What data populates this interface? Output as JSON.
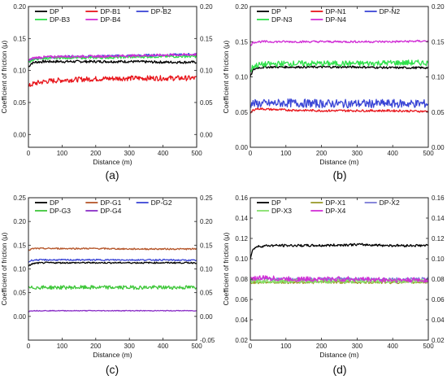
{
  "chart_data": [
    {
      "type": "line",
      "panel_label": "(a)",
      "xlabel": "Distance (m)",
      "ylabel": "Coefficient of friction (μ)",
      "xlim": [
        0,
        500
      ],
      "ylim": [
        -0.02,
        0.2
      ],
      "xticks": [
        0,
        100,
        200,
        300,
        400,
        500
      ],
      "yticks_left": [
        0.0,
        0.05,
        0.1,
        0.15,
        0.2
      ],
      "yticks_right": [
        0.0,
        0.05,
        0.1,
        0.15,
        0.2
      ],
      "legend": {
        "placement": "top-left",
        "columns": 3
      },
      "series": [
        {
          "name": "DP",
          "color": "#000000",
          "x": [
            0,
            8,
            20,
            50,
            100,
            200,
            300,
            400,
            500
          ],
          "y": [
            0.105,
            0.111,
            0.113,
            0.114,
            0.114,
            0.114,
            0.114,
            0.113,
            0.113
          ],
          "noise": 0.002
        },
        {
          "name": "DP-B1",
          "color": "#e8151b",
          "x": [
            0,
            8,
            20,
            50,
            100,
            200,
            300,
            400,
            500
          ],
          "y": [
            0.074,
            0.078,
            0.08,
            0.083,
            0.085,
            0.087,
            0.088,
            0.088,
            0.088
          ],
          "noise": 0.004
        },
        {
          "name": "DP-B2",
          "color": "#3b46d6",
          "x": [
            0,
            8,
            20,
            50,
            100,
            200,
            300,
            400,
            500
          ],
          "y": [
            0.113,
            0.117,
            0.119,
            0.12,
            0.121,
            0.122,
            0.123,
            0.124,
            0.125
          ],
          "noise": 0.002
        },
        {
          "name": "DP-B3",
          "color": "#2ee04a",
          "x": [
            0,
            8,
            20,
            50,
            100,
            200,
            300,
            400,
            500
          ],
          "y": [
            0.112,
            0.116,
            0.118,
            0.119,
            0.12,
            0.12,
            0.121,
            0.122,
            0.122
          ],
          "noise": 0.002
        },
        {
          "name": "DP-B4",
          "color": "#d12fd6",
          "x": [
            0,
            8,
            20,
            50,
            100,
            200,
            300,
            400,
            500
          ],
          "y": [
            0.115,
            0.118,
            0.12,
            0.121,
            0.122,
            0.122,
            0.123,
            0.124,
            0.125
          ],
          "noise": 0.002
        }
      ]
    },
    {
      "type": "line",
      "panel_label": "(b)",
      "xlabel": "Distance (m)",
      "ylabel": "Coefficient of friction (μ)",
      "xlim": [
        0,
        500
      ],
      "ylim": [
        0,
        0.2
      ],
      "xticks": [
        0,
        100,
        200,
        300,
        400,
        500
      ],
      "yticks_left": [
        0.0,
        0.05,
        0.1,
        0.15,
        0.2
      ],
      "yticks_right": [
        0.0,
        0.05,
        0.1,
        0.15,
        0.2
      ],
      "legend": {
        "placement": "top-left",
        "columns": 3
      },
      "series": [
        {
          "name": "DP",
          "color": "#000000",
          "x": [
            0,
            8,
            20,
            50,
            100,
            200,
            300,
            400,
            500
          ],
          "y": [
            0.1,
            0.11,
            0.113,
            0.114,
            0.114,
            0.114,
            0.114,
            0.113,
            0.113
          ],
          "noise": 0.0015
        },
        {
          "name": "DP-N1",
          "color": "#e8151b",
          "x": [
            0,
            8,
            20,
            50,
            100,
            200,
            300,
            400,
            500
          ],
          "y": [
            0.048,
            0.053,
            0.055,
            0.054,
            0.053,
            0.052,
            0.052,
            0.052,
            0.051
          ],
          "noise": 0.0015
        },
        {
          "name": "DP-N2",
          "color": "#3b46d6",
          "x": [
            0,
            8,
            20,
            50,
            100,
            200,
            300,
            400,
            500
          ],
          "y": [
            0.062,
            0.062,
            0.062,
            0.062,
            0.063,
            0.062,
            0.062,
            0.062,
            0.062
          ],
          "noise": 0.006
        },
        {
          "name": "DP-N3",
          "color": "#2ee04a",
          "x": [
            0,
            8,
            20,
            50,
            100,
            200,
            300,
            400,
            500
          ],
          "y": [
            0.108,
            0.115,
            0.117,
            0.118,
            0.119,
            0.119,
            0.119,
            0.12,
            0.12
          ],
          "noise": 0.004
        },
        {
          "name": "DP-N4",
          "color": "#d12fd6",
          "x": [
            0,
            8,
            20,
            50,
            100,
            200,
            300,
            400,
            500
          ],
          "y": [
            0.145,
            0.149,
            0.15,
            0.15,
            0.15,
            0.15,
            0.15,
            0.15,
            0.151
          ],
          "noise": 0.0015
        }
      ]
    },
    {
      "type": "line",
      "panel_label": "(c)",
      "xlabel": "Distance (m)",
      "ylabel": "Coefficient of friction (μ)",
      "xlim": [
        0,
        500
      ],
      "ylim": [
        -0.05,
        0.25
      ],
      "xticks": [
        0,
        100,
        200,
        300,
        400,
        500
      ],
      "yticks_left": [
        0.0,
        0.05,
        0.1,
        0.15,
        0.2,
        0.25
      ],
      "yticks_right": [
        -0.05,
        0.0,
        0.05,
        0.1,
        0.15,
        0.2,
        0.25
      ],
      "legend": {
        "placement": "top-left",
        "columns": 3
      },
      "series": [
        {
          "name": "DP",
          "color": "#000000",
          "x": [
            0,
            8,
            20,
            50,
            100,
            200,
            300,
            400,
            500
          ],
          "y": [
            0.105,
            0.11,
            0.112,
            0.113,
            0.113,
            0.113,
            0.113,
            0.113,
            0.113
          ],
          "noise": 0.0015
        },
        {
          "name": "DP-G1",
          "color": "#b5562a",
          "x": [
            0,
            8,
            20,
            50,
            100,
            200,
            300,
            400,
            500
          ],
          "y": [
            0.138,
            0.142,
            0.143,
            0.143,
            0.143,
            0.143,
            0.142,
            0.142,
            0.142
          ],
          "noise": 0.0015
        },
        {
          "name": "DP-G2",
          "color": "#3b46d6",
          "x": [
            0,
            8,
            20,
            50,
            100,
            200,
            300,
            400,
            500
          ],
          "y": [
            0.114,
            0.118,
            0.119,
            0.119,
            0.119,
            0.119,
            0.119,
            0.119,
            0.118
          ],
          "noise": 0.0015
        },
        {
          "name": "DP-G3",
          "color": "#3fc73a",
          "x": [
            0,
            8,
            20,
            50,
            100,
            200,
            300,
            400,
            500
          ],
          "y": [
            0.06,
            0.06,
            0.061,
            0.061,
            0.061,
            0.061,
            0.061,
            0.061,
            0.061
          ],
          "noise": 0.004
        },
        {
          "name": "DP-G4",
          "color": "#8a2ec7",
          "x": [
            0,
            8,
            20,
            50,
            100,
            200,
            300,
            400,
            500
          ],
          "y": [
            0.01,
            0.012,
            0.012,
            0.012,
            0.012,
            0.012,
            0.012,
            0.012,
            0.012
          ],
          "noise": 0.0008
        }
      ]
    },
    {
      "type": "line",
      "panel_label": "(d)",
      "xlabel": "Distance (m)",
      "ylabel": "Coefficient of friction (μ)",
      "xlim": [
        0,
        500
      ],
      "ylim": [
        0.02,
        0.16
      ],
      "xticks": [
        0,
        100,
        200,
        300,
        400,
        500
      ],
      "yticks_left": [
        0.02,
        0.04,
        0.06,
        0.08,
        0.1,
        0.12,
        0.14,
        0.16
      ],
      "yticks_right": [
        0.02,
        0.04,
        0.06,
        0.08,
        0.1,
        0.12,
        0.14,
        0.16
      ],
      "legend": {
        "placement": "top-left",
        "columns": 3
      },
      "series": [
        {
          "name": "DP",
          "color": "#000000",
          "x": [
            0,
            8,
            20,
            50,
            100,
            200,
            300,
            400,
            500
          ],
          "y": [
            0.1,
            0.11,
            0.112,
            0.113,
            0.113,
            0.113,
            0.114,
            0.113,
            0.113
          ],
          "noise": 0.0012
        },
        {
          "name": "DP-X1",
          "color": "#9a9a2a",
          "x": [
            0,
            8,
            20,
            50,
            100,
            200,
            300,
            400,
            500
          ],
          "y": [
            0.076,
            0.077,
            0.077,
            0.077,
            0.077,
            0.077,
            0.077,
            0.077,
            0.077
          ],
          "noise": 0.0015
        },
        {
          "name": "DP-X2",
          "color": "#7a7ad6",
          "x": [
            0,
            8,
            20,
            50,
            100,
            200,
            300,
            400,
            500
          ],
          "y": [
            0.079,
            0.08,
            0.08,
            0.08,
            0.08,
            0.08,
            0.08,
            0.08,
            0.08
          ],
          "noise": 0.0015
        },
        {
          "name": "DP-X3",
          "color": "#85e06a",
          "x": [
            0,
            8,
            20,
            50,
            100,
            200,
            300,
            400,
            500
          ],
          "y": [
            0.077,
            0.078,
            0.078,
            0.078,
            0.078,
            0.078,
            0.078,
            0.078,
            0.078
          ],
          "noise": 0.002
        },
        {
          "name": "DP-X4",
          "color": "#d12fd6",
          "x": [
            0,
            8,
            20,
            50,
            100,
            200,
            300,
            400,
            500
          ],
          "y": [
            0.08,
            0.081,
            0.081,
            0.081,
            0.08,
            0.08,
            0.08,
            0.079,
            0.079
          ],
          "noise": 0.0025
        }
      ]
    }
  ]
}
